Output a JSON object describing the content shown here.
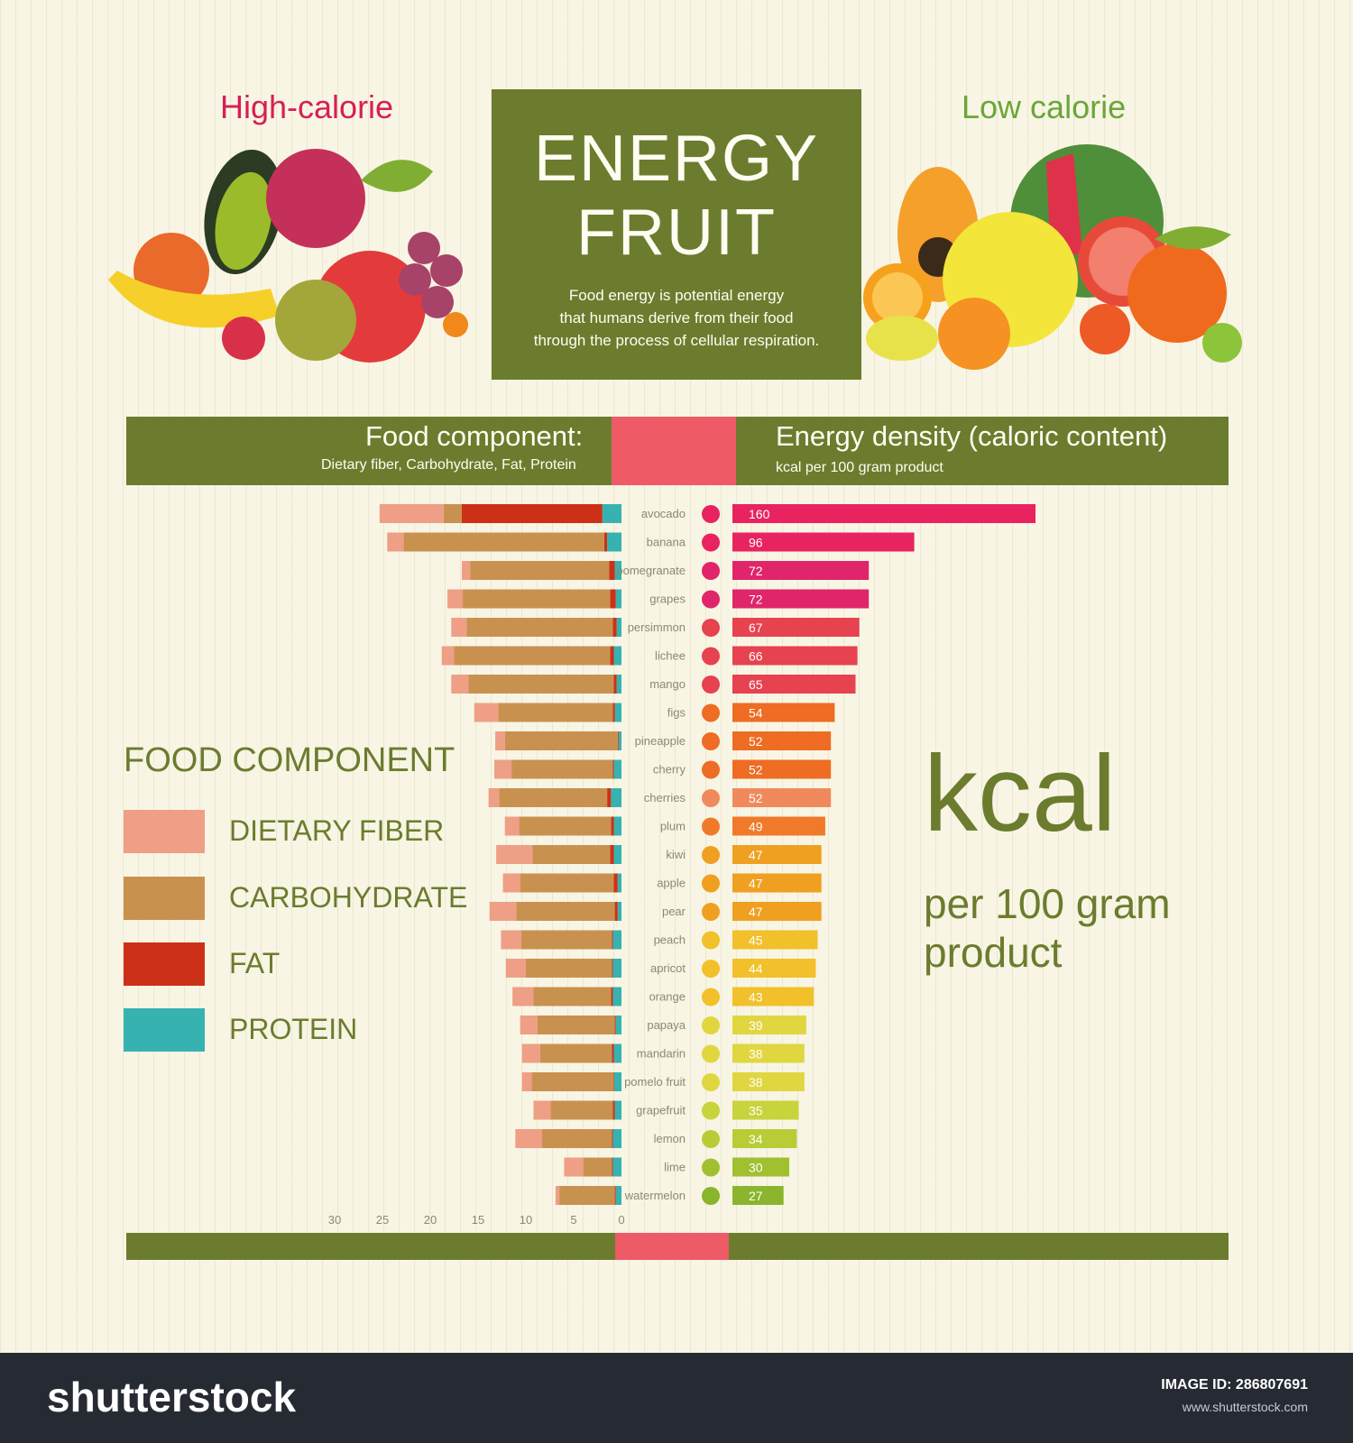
{
  "header": {
    "high_calorie": "High-calorie",
    "low_calorie": "Low calorie",
    "title_line1": "ENERGY",
    "title_line2": "FRUIT",
    "description": [
      "Food energy is potential energy",
      "that humans derive from their food",
      "through the process of cellular respiration."
    ]
  },
  "band": {
    "left_title": "Food component:",
    "left_sub": "Dietary fiber, Carbohydrate, Fat, Protein",
    "right_title": "Energy density (caloric content)",
    "right_sub": "kcal per 100 gram product"
  },
  "legend": {
    "title": "FOOD COMPONENT",
    "items": [
      {
        "label": "DIETARY FIBER",
        "color": "#ee9f85"
      },
      {
        "label": "CARBOHYDRATE",
        "color": "#c9914f"
      },
      {
        "label": "FAT",
        "color": "#cc3118"
      },
      {
        "label": "PROTEIN",
        "color": "#36b3b0"
      }
    ]
  },
  "kcal_label": {
    "big": "kcal",
    "line1": "per 100 gram",
    "line2": "product"
  },
  "colors": {
    "olive": "#6b7c2e",
    "pink": "#ee5b67",
    "background": "#f8f5e4"
  },
  "chart_data": {
    "type": "bar",
    "title": "Energy fruit",
    "components_axis": {
      "ticks": [
        "30",
        "25",
        "20",
        "15",
        "10",
        "5",
        "0"
      ],
      "max": 30
    },
    "energy_axis": {
      "max": 160,
      "unit": "kcal per 100 gram product"
    },
    "fruits": [
      {
        "name": "avocado",
        "kcal": 160,
        "fiber": 6.7,
        "carbs": 1.9,
        "fat": 14.7,
        "protein": 2
      },
      {
        "name": "banana",
        "kcal": 96,
        "fiber": 1.7,
        "carbs": 21,
        "fat": 0.3,
        "protein": 1.5
      },
      {
        "name": "pomegranate",
        "kcal": 72,
        "fiber": 0.9,
        "carbs": 14.5,
        "fat": 0.6,
        "protein": 0.7
      },
      {
        "name": "grapes",
        "kcal": 72,
        "fiber": 1.6,
        "carbs": 15.4,
        "fat": 0.6,
        "protein": 0.6
      },
      {
        "name": "persimmon",
        "kcal": 67,
        "fiber": 1.6,
        "carbs": 15.3,
        "fat": 0.4,
        "protein": 0.5
      },
      {
        "name": "lichee",
        "kcal": 66,
        "fiber": 1.3,
        "carbs": 16.3,
        "fat": 0.4,
        "protein": 0.8
      },
      {
        "name": "mango",
        "kcal": 65,
        "fiber": 1.8,
        "carbs": 15.2,
        "fat": 0.3,
        "protein": 0.5
      },
      {
        "name": "figs",
        "kcal": 54,
        "fiber": 2.5,
        "carbs": 12,
        "fat": 0.2,
        "protein": 0.7
      },
      {
        "name": "pineapple",
        "kcal": 52,
        "fiber": 1,
        "carbs": 11.8,
        "fat": 0.1,
        "protein": 0.3
      },
      {
        "name": "cherry",
        "kcal": 52,
        "fiber": 1.8,
        "carbs": 10.6,
        "fat": 0.1,
        "protein": 0.8
      },
      {
        "name": "cherries",
        "kcal": 52,
        "fiber": 1.1,
        "carbs": 11.3,
        "fat": 0.4,
        "protein": 1.1
      },
      {
        "name": "plum",
        "kcal": 49,
        "fiber": 1.5,
        "carbs": 9.6,
        "fat": 0.3,
        "protein": 0.8
      },
      {
        "name": "kiwi",
        "kcal": 47,
        "fiber": 3.8,
        "carbs": 8.1,
        "fat": 0.4,
        "protein": 0.8
      },
      {
        "name": "apple",
        "kcal": 47,
        "fiber": 1.8,
        "carbs": 9.8,
        "fat": 0.4,
        "protein": 0.4
      },
      {
        "name": "pear",
        "kcal": 47,
        "fiber": 2.8,
        "carbs": 10.3,
        "fat": 0.3,
        "protein": 0.4
      },
      {
        "name": "peach",
        "kcal": 45,
        "fiber": 2.1,
        "carbs": 9.5,
        "fat": 0.1,
        "protein": 0.9
      },
      {
        "name": "apricot",
        "kcal": 44,
        "fiber": 2.1,
        "carbs": 9,
        "fat": 0.1,
        "protein": 0.9
      },
      {
        "name": "orange",
        "kcal": 43,
        "fiber": 2.2,
        "carbs": 8.1,
        "fat": 0.2,
        "protein": 0.9
      },
      {
        "name": "papaya",
        "kcal": 39,
        "fiber": 1.8,
        "carbs": 8.1,
        "fat": 0.1,
        "protein": 0.6
      },
      {
        "name": "mandarin",
        "kcal": 38,
        "fiber": 1.9,
        "carbs": 7.5,
        "fat": 0.2,
        "protein": 0.8
      },
      {
        "name": "pomelo fruit",
        "kcal": 38,
        "fiber": 1,
        "carbs": 8.6,
        "fat": 0.04,
        "protein": 0.76
      },
      {
        "name": "grapefruit",
        "kcal": 35,
        "fiber": 1.8,
        "carbs": 6.5,
        "fat": 0.2,
        "protein": 0.7
      },
      {
        "name": "lemon",
        "kcal": 34,
        "fiber": 2.8,
        "carbs": 7.3,
        "fat": 0.1,
        "protein": 0.9
      },
      {
        "name": "lime",
        "kcal": 30,
        "fiber": 2,
        "carbs": 3,
        "fat": 0.1,
        "protein": 0.9
      },
      {
        "name": "watermelon",
        "kcal": 27,
        "fiber": 0.4,
        "carbs": 5.8,
        "fat": 0.1,
        "protein": 0.6
      }
    ]
  },
  "footer": {
    "brand": "shutterstock",
    "image_id": "IMAGE ID: 286807691",
    "site": "www.shutterstock.com"
  }
}
